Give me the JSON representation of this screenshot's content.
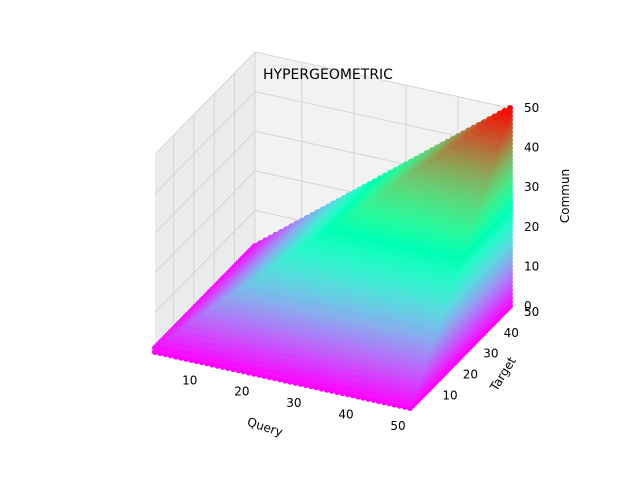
{
  "chart_data": {
    "type": "scatter3d",
    "title": "HYPERGEOMETRIC",
    "xlabel": "Query",
    "ylabel": "Target",
    "zlabel": "Commun",
    "xlim": [
      1,
      50
    ],
    "ylim": [
      1,
      50
    ],
    "zlim": [
      0,
      50
    ],
    "x_ticks": [
      10,
      20,
      30,
      40,
      50
    ],
    "y_ticks": [
      10,
      20,
      30,
      40,
      50
    ],
    "z_ticks": [
      0,
      10,
      20,
      30,
      40,
      50
    ],
    "x_tick_labels": [
      "10",
      "20",
      "30",
      "40",
      "50"
    ],
    "y_tick_labels": [
      "10",
      "20",
      "30",
      "40",
      "50"
    ],
    "z_tick_labels": [
      "0",
      "10",
      "20",
      "30",
      "40",
      "50"
    ],
    "grid": true,
    "colormap": "rainbow",
    "surface_rule": "for every Query and Target from 1 to 50, points at Commun = 0 … min(Query, Target)",
    "query_range": [
      1,
      50
    ],
    "target_range": [
      1,
      50
    ],
    "commun_max_expression": "min(Query, Target)",
    "colors": {
      "pane_back": "#f2f2f2",
      "pane_side": "#ebebeb",
      "pane_floor": "#e4e4e4",
      "grid": "#cfcfcf"
    }
  }
}
